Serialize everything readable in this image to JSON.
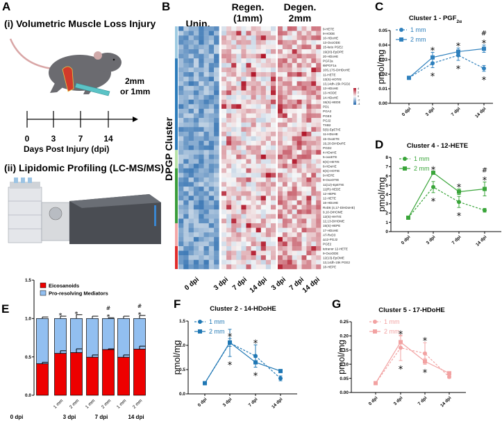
{
  "panel_a": {
    "letter": "A",
    "title_i": "(i) Volumetric Muscle Loss Injury",
    "injury_size_line1": "2mm",
    "injury_size_line2": "or 1mm",
    "timeline_ticks": [
      "0",
      "3",
      "7",
      "14"
    ],
    "timeline_label": "Days Post Injury (dpi)",
    "title_ii": "(ii) Lipidomic Profiling (LC-MS/MS)",
    "colors": {
      "mouse": "#6b6b70",
      "tail": "#d9a6a6",
      "injury": "#d23a2a",
      "tool": "#5bc3c6"
    }
  },
  "panel_b": {
    "letter": "B",
    "group_unin": "Unin.",
    "group_regen_line1": "Regen.",
    "group_regen_line2": "(1mm)",
    "group_degen_line1": "Degen.",
    "group_degen_line2": "2mm",
    "cluster_axis_label": "DPGP Cluster",
    "column_labels": [
      "0 dpi",
      "3 dpi",
      "7 dpi",
      "14 dpi",
      "3 dpi",
      "7 dpi",
      "14 dpi"
    ],
    "color_scale_ticks": [
      "4",
      "2",
      "0",
      "-2",
      "-4"
    ],
    "color_scale": {
      "high": "#b2182b",
      "mid": "#f7f7f7",
      "low": "#2166ac"
    },
    "cluster_colors": [
      "#9ecae1",
      "#2b7bba",
      "#b7e2a8",
      "#3a9c3a",
      "#f4a6a6",
      "#e02b2b"
    ],
    "row_labels": [
      "9-HETE",
      "9-HODE",
      "10-HDoHE",
      "13-OxoODE",
      "15-keto PGE2",
      "19(20)-EpDPE",
      "20-HDoHE",
      "PGF2a",
      "6kPGF1a",
      "10S,17S-DiHDoHE",
      "11-HETE",
      "13(S)-HOTrE",
      "13,14dh-15k PGD2",
      "13-HDoHE",
      "13-HODE",
      "14-HDoHE",
      "15(S)-HEDE",
      "PD1",
      "PGA2",
      "PGE3",
      "PGJ2",
      "TXB2",
      "5(6)-EpETrE",
      "11-HDoHE",
      "15-OxoETE",
      "19,20-DiHDoPE",
      "PGD2",
      "4-HDoHE",
      "5-oxoETE",
      "8(S)-HETrE",
      "8-HDoHE",
      "8(S)-HOTrE",
      "9-HEPE",
      "9-OxoOTrE",
      "11(12)-EpETrE",
      "11(R)-HEDE",
      "12-HEPE",
      "12-HETE",
      "16-HDoHE",
      "RvD6 (4,17-DiHDoHE)",
      "9,10-DiHOME",
      "12(S)-HHTrE",
      "12,13-DiHOME",
      "15(S)-HEPE",
      "17-HDoHE",
      "AT-RvD3",
      "Δ12-PGJ2",
      "PGE2",
      "tetranor 12-HETE",
      "9-OxoODE",
      "12(13)-EpOME",
      "13,14dh-15k PGE2",
      "18-HEPE"
    ]
  },
  "chart_data": [
    {
      "panel": "C",
      "type": "line",
      "title": "Cluster 1 - PGF",
      "title_subscript": "2α",
      "ylabel": "pmol/mg",
      "ylim": [
        0,
        0.05
      ],
      "yticks": [
        "0.00",
        "0.01",
        "0.02",
        "0.03",
        "0.04",
        "0.05"
      ],
      "categories": [
        "0 dpi",
        "3 dpi",
        "7 dpi",
        "14 dpi"
      ],
      "legend": "top-left",
      "color": "#2f80bd",
      "series": [
        {
          "name": "1 mm",
          "line": "dashed",
          "marker": "circle",
          "values": [
            0.0175,
            0.0275,
            0.033,
            0.024
          ],
          "errors": [
            0.0005,
            0.003,
            0.0035,
            0.002
          ]
        },
        {
          "name": "2 mm",
          "line": "solid",
          "marker": "square",
          "values": [
            0.0175,
            0.0315,
            0.0355,
            0.0375
          ],
          "errors": [
            0.0005,
            0.0035,
            0.0025,
            0.0025
          ]
        }
      ],
      "annotations": [
        {
          "category": 1,
          "series": 1,
          "position": "above",
          "text": "*"
        },
        {
          "category": 1,
          "series": 0,
          "position": "below",
          "text": "*"
        },
        {
          "category": 2,
          "series": 1,
          "position": "above",
          "text": "*"
        },
        {
          "category": 2,
          "series": 0,
          "position": "below",
          "text": "*"
        },
        {
          "category": 3,
          "series": 1,
          "position": "above",
          "text": "*"
        },
        {
          "category": 3,
          "series": 1,
          "position": "above",
          "text": "#"
        },
        {
          "category": 3,
          "series": 0,
          "position": "below",
          "text": "*"
        }
      ]
    },
    {
      "panel": "D",
      "type": "line",
      "title": "Cluster 4 - 12-HETE",
      "ylabel": "pmol/mg",
      "ylim": [
        0,
        8
      ],
      "yticks": [
        "0",
        "1",
        "2",
        "3",
        "4",
        "5",
        "6",
        "7",
        "8"
      ],
      "categories": [
        "0 dpi",
        "3 dpi",
        "7 dpi",
        "14 dpi"
      ],
      "legend": "top-left",
      "color": "#3aa53a",
      "series": [
        {
          "name": "1 mm",
          "line": "dashed",
          "marker": "circle",
          "values": [
            1.5,
            4.8,
            3.2,
            2.3
          ],
          "errors": [
            0.1,
            0.6,
            0.6,
            0.2
          ]
        },
        {
          "name": "2 mm",
          "line": "solid",
          "marker": "square",
          "values": [
            1.5,
            6.35,
            4.3,
            4.6
          ],
          "errors": [
            0.1,
            0.1,
            0.3,
            0.75
          ]
        }
      ],
      "annotations": [
        {
          "category": 1,
          "series": 1,
          "position": "above",
          "text": "*"
        },
        {
          "category": 1,
          "series": 0,
          "position": "below",
          "text": "*"
        },
        {
          "category": 2,
          "series": 1,
          "position": "above",
          "text": "*"
        },
        {
          "category": 2,
          "series": 0,
          "position": "below",
          "text": "*"
        },
        {
          "category": 3,
          "series": 1,
          "position": "above",
          "text": "*"
        },
        {
          "category": 3,
          "series": 1,
          "position": "above",
          "text": "#"
        }
      ]
    },
    {
      "panel": "E",
      "type": "bar",
      "stacked": true,
      "ylim": [
        0,
        1.5
      ],
      "yticks": [
        "0.0",
        "0.5",
        "1.0",
        "1.5"
      ],
      "categories": [
        "",
        "1 mm",
        "2 mm",
        "1 mm",
        "2 mm",
        "1 mm",
        "2 mm"
      ],
      "groups": [
        "0 dpi",
        "3 dpi",
        "7 dpi",
        "14 dpi"
      ],
      "legend": "top-left",
      "series": [
        {
          "name": "Eicosanoids",
          "color": "#ee0000",
          "values": [
            0.41,
            0.545,
            0.555,
            0.495,
            0.595,
            0.495,
            0.6
          ],
          "errors": [
            0.02,
            0.035,
            0.05,
            0.03,
            0.01,
            0.03,
            0.04
          ]
        },
        {
          "name": "Pro-resolving Mediators",
          "color": "#92bff0",
          "values": [
            0.59,
            0.455,
            0.445,
            0.505,
            0.405,
            0.505,
            0.4
          ],
          "errors": [
            0.02,
            0.03,
            0.05,
            0.03,
            0.01,
            0.03,
            0.04
          ]
        }
      ],
      "annotations": [
        {
          "category": 1,
          "text": "*"
        },
        {
          "category": 2,
          "text": "*"
        },
        {
          "category": 4,
          "text": "*"
        },
        {
          "category": 4,
          "text": "#"
        },
        {
          "category": 6,
          "text": "*"
        },
        {
          "category": 6,
          "text": "#"
        }
      ]
    },
    {
      "panel": "F",
      "type": "line",
      "title": "Cluster 2 - 14-HDoHE",
      "ylabel": "pmol/mg",
      "ylim": [
        0,
        1.5
      ],
      "yticks": [
        "0.0",
        "0.5",
        "1.0",
        "1.5"
      ],
      "categories": [
        "0 dpi",
        "3 dpi",
        "7 dpi",
        "14 dpi"
      ],
      "legend": "top-left",
      "color": "#1f77b4",
      "series": [
        {
          "name": "1 mm",
          "line": "dashed",
          "marker": "circle",
          "values": [
            0.22,
            1.05,
            0.78,
            0.32
          ],
          "errors": [
            0.01,
            0.28,
            0.23,
            0.05
          ]
        },
        {
          "name": "2 mm",
          "line": "solid",
          "marker": "square",
          "values": [
            0.22,
            1.06,
            0.65,
            0.47
          ],
          "errors": [
            0.01,
            0.08,
            0.1,
            0.02
          ]
        }
      ],
      "annotations": [
        {
          "category": 1,
          "series": 1,
          "position": "above",
          "text": "*"
        },
        {
          "category": 1,
          "series": 0,
          "position": "below",
          "text": "*"
        },
        {
          "category": 2,
          "series": 0,
          "position": "above",
          "text": "*"
        },
        {
          "category": 2,
          "series": 1,
          "position": "below",
          "text": "*"
        }
      ]
    },
    {
      "panel": "G",
      "type": "line",
      "title": "Cluster 5 - 17-HDoHE",
      "ylabel": "pmol/mg",
      "ylim": [
        0,
        0.25
      ],
      "yticks": [
        "0.00",
        "0.05",
        "0.10",
        "0.15",
        "0.20",
        "0.25"
      ],
      "categories": [
        "0 dpi",
        "3 dpi",
        "7 dpi",
        "14 dpi"
      ],
      "legend": "top-left",
      "color": "#f2a2a2",
      "series": [
        {
          "name": "1 mm",
          "line": "dashed",
          "marker": "circle",
          "values": [
            0.033,
            0.158,
            0.138,
            0.055
          ],
          "errors": [
            0.002,
            0.045,
            0.038,
            0.005
          ]
        },
        {
          "name": "2 mm",
          "line": "solid",
          "marker": "square",
          "values": [
            0.033,
            0.178,
            0.11,
            0.068
          ],
          "errors": [
            0.002,
            0.022,
            0.01,
            0.005
          ]
        }
      ],
      "annotations": [
        {
          "category": 1,
          "series": 1,
          "position": "above",
          "text": "*"
        },
        {
          "category": 1,
          "series": 0,
          "position": "below",
          "text": "*"
        },
        {
          "category": 2,
          "series": 0,
          "position": "above",
          "text": "*"
        },
        {
          "category": 2,
          "series": 1,
          "position": "below",
          "text": "*"
        }
      ]
    }
  ]
}
